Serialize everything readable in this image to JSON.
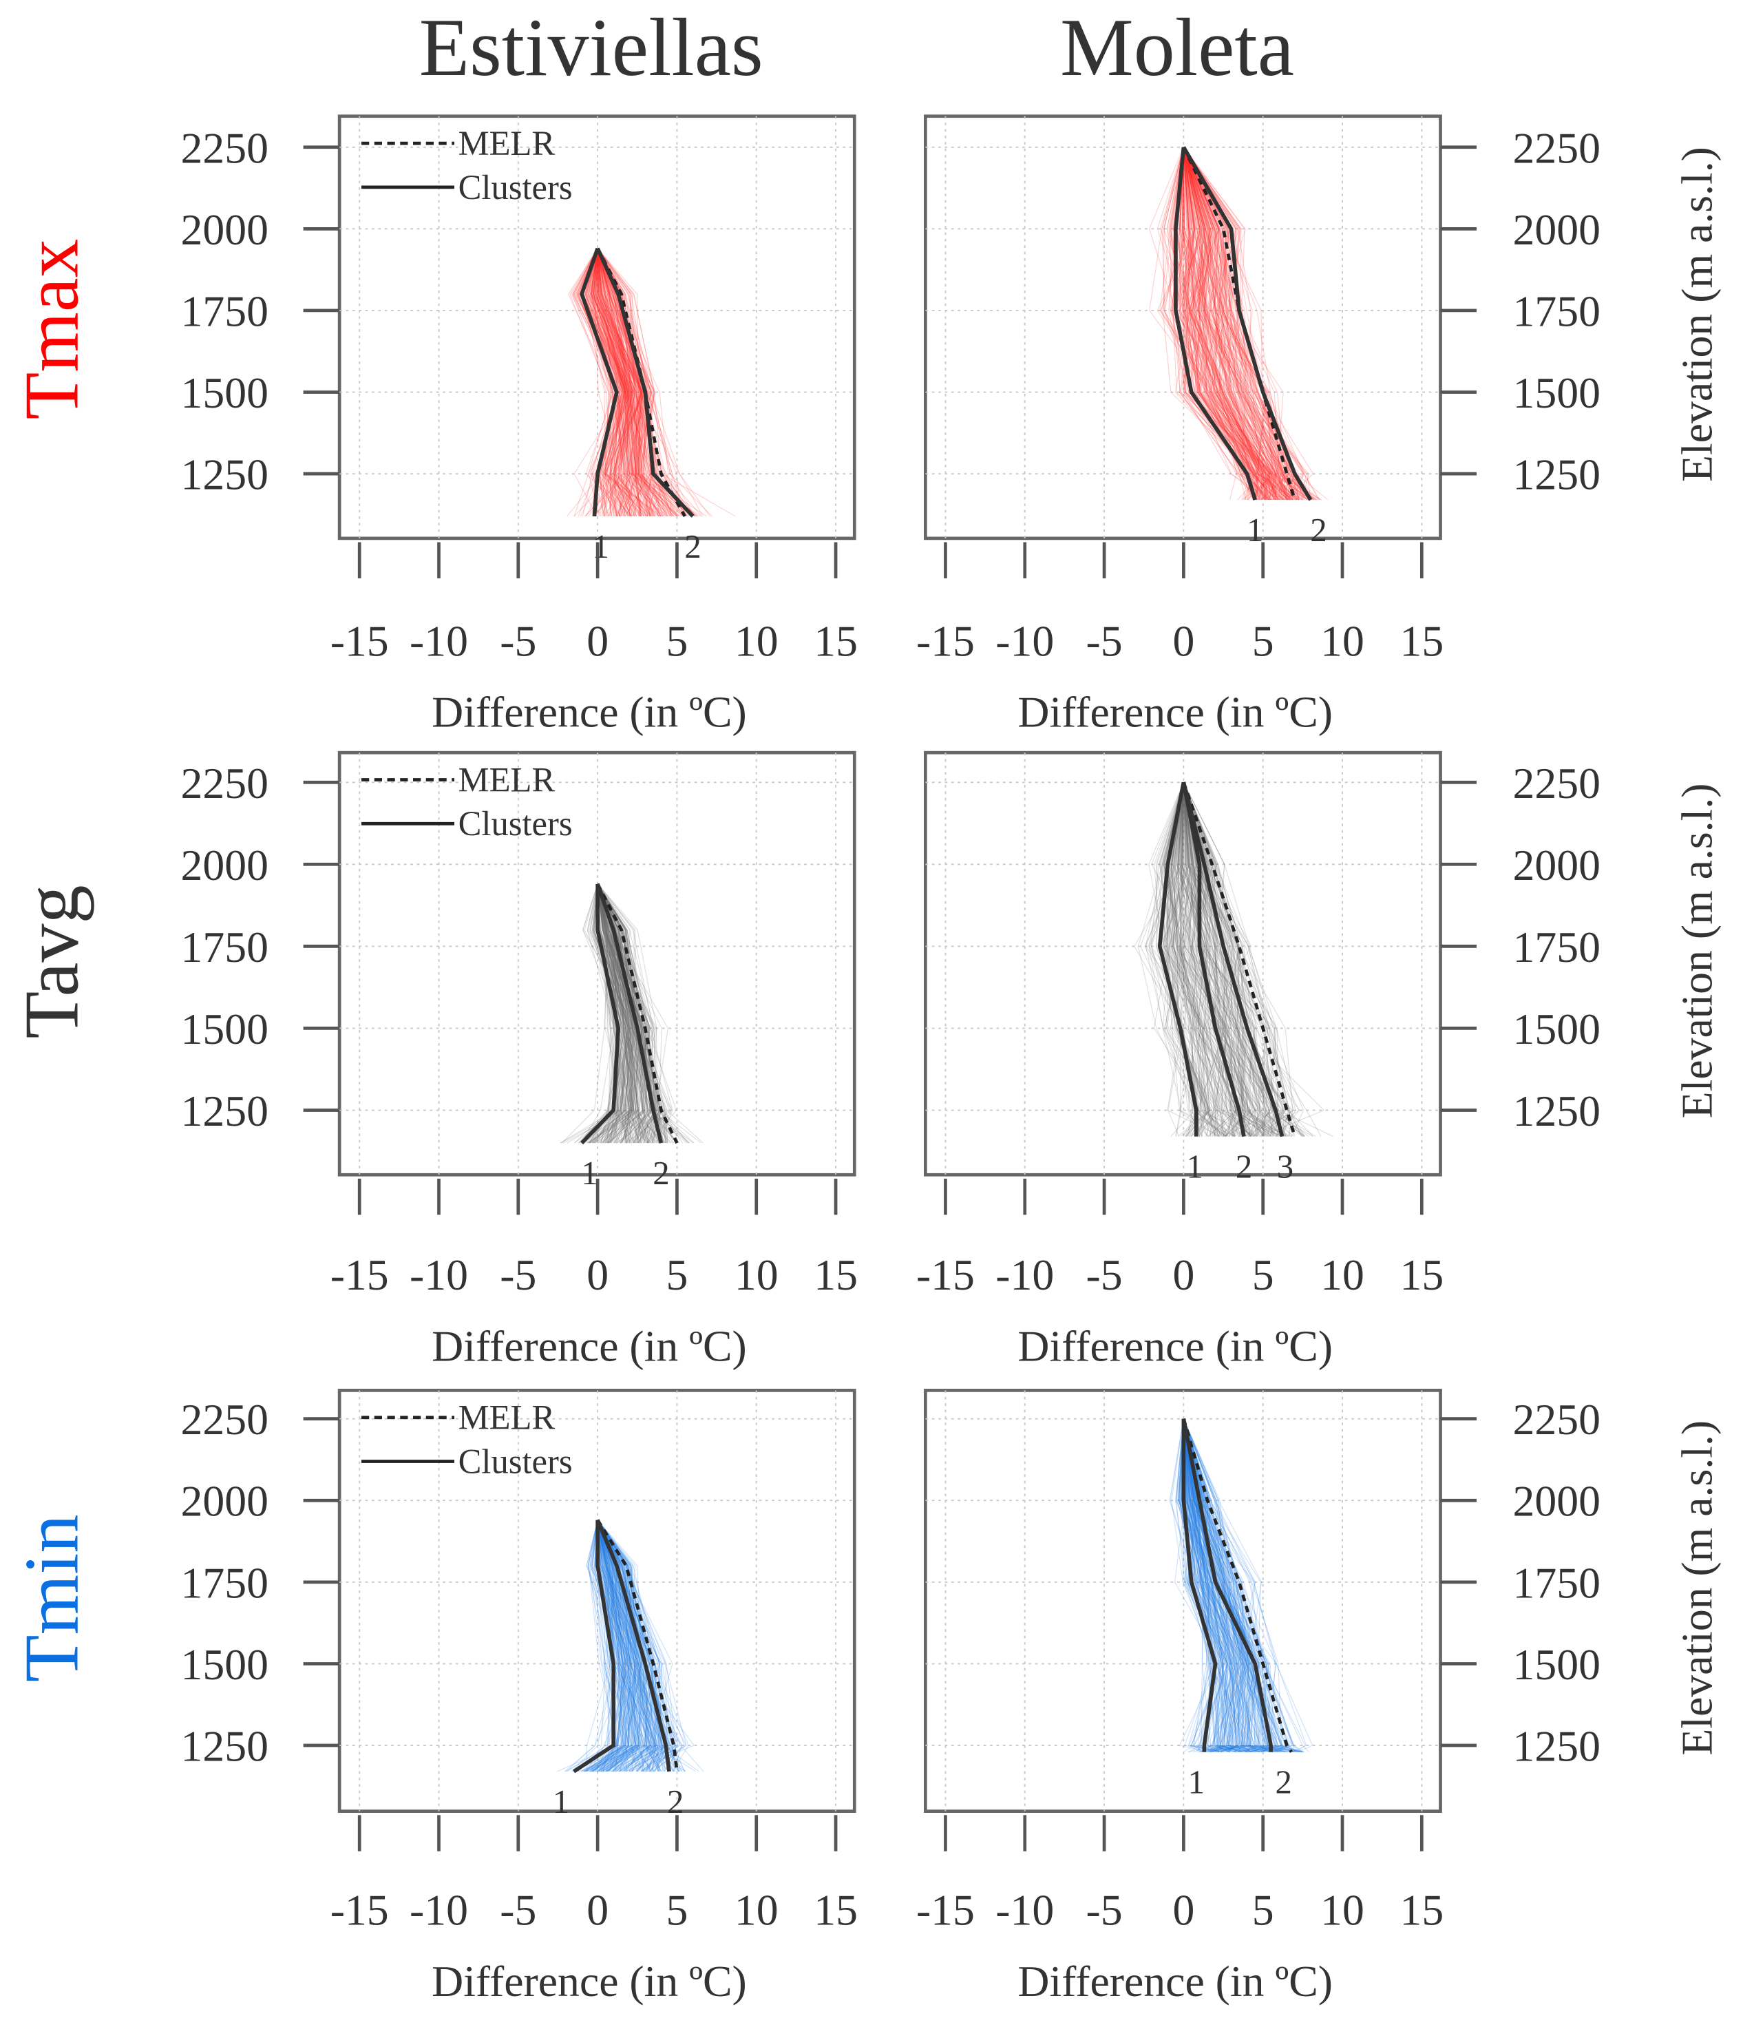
{
  "figure": {
    "columns": [
      "Estiviellas",
      "Moleta"
    ],
    "rows": [
      {
        "label": "Tmax",
        "color": "#ff0000",
        "fan_color": "#ff1010"
      },
      {
        "label": "Tavg",
        "color": "#333333",
        "fan_color": "#555555"
      },
      {
        "label": "Tmin",
        "color": "#0a6fe0",
        "fan_color": "#0a6fe0"
      }
    ],
    "xlabel": "Difference (in ºC)",
    "ylabel": "Elevation (m a.s.l.)",
    "legend": {
      "melr": "MELR",
      "clusters": "Clusters"
    },
    "xticks": [
      -15,
      -10,
      -5,
      0,
      5,
      10,
      15
    ],
    "yticks": [
      1250,
      1500,
      1750,
      2000,
      2250
    ]
  },
  "chart_data": [
    {
      "type": "line",
      "row": "Tmax",
      "site": "Estiviellas",
      "xlim": [
        -16,
        16.5
      ],
      "ylim": [
        1050,
        2350
      ],
      "elevation": [
        1940,
        1800,
        1500,
        1250,
        1120
      ],
      "melr": [
        0,
        1.5,
        3,
        4,
        5.5
      ],
      "series": [
        {
          "name": "1",
          "x": [
            0,
            -1,
            1.2,
            0,
            -0.2
          ],
          "y": [
            1940,
            1800,
            1500,
            1250,
            1120
          ]
        },
        {
          "name": "2",
          "x": [
            0,
            1.3,
            3,
            3.5,
            6
          ],
          "y": [
            1940,
            1800,
            1500,
            1250,
            1120
          ]
        }
      ],
      "cluster_labels": [
        {
          "text": "1",
          "x": 0.2
        },
        {
          "text": "2",
          "x": 6
        }
      ]
    },
    {
      "type": "line",
      "row": "Tmax",
      "site": "Moleta",
      "xlim": [
        -16,
        16.5
      ],
      "ylim": [
        1050,
        2350
      ],
      "elevation": [
        2250,
        2000,
        1750,
        1500,
        1250,
        1170
      ],
      "melr": [
        0,
        2.5,
        3.5,
        5,
        6.5,
        7
      ],
      "series": [
        {
          "name": "1",
          "x": [
            0,
            -0.5,
            -0.5,
            0.5,
            4,
            4.5
          ],
          "y": [
            2250,
            2000,
            1750,
            1500,
            1250,
            1170
          ]
        },
        {
          "name": "2",
          "x": [
            0,
            3,
            3.5,
            5,
            7,
            8
          ],
          "y": [
            2250,
            2000,
            1750,
            1500,
            1250,
            1170
          ]
        }
      ],
      "cluster_labels": [
        {
          "text": "1",
          "x": 4.5
        },
        {
          "text": "2",
          "x": 8.5
        }
      ]
    },
    {
      "type": "line",
      "row": "Tavg",
      "site": "Estiviellas",
      "xlim": [
        -16,
        16.5
      ],
      "ylim": [
        1050,
        2350
      ],
      "elevation": [
        1940,
        1800,
        1500,
        1250,
        1150
      ],
      "melr": [
        0,
        1.5,
        3,
        4,
        5
      ],
      "series": [
        {
          "name": "1",
          "x": [
            0,
            0,
            1.3,
            1,
            -1
          ],
          "y": [
            1940,
            1800,
            1500,
            1250,
            1150
          ]
        },
        {
          "name": "2",
          "x": [
            0,
            1,
            2.5,
            3.5,
            4
          ],
          "y": [
            1940,
            1800,
            1500,
            1250,
            1150
          ]
        }
      ],
      "cluster_labels": [
        {
          "text": "1",
          "x": -0.5
        },
        {
          "text": "2",
          "x": 4
        }
      ]
    },
    {
      "type": "line",
      "row": "Tavg",
      "site": "Moleta",
      "xlim": [
        -16,
        16.5
      ],
      "ylim": [
        1050,
        2350
      ],
      "elevation": [
        2250,
        2000,
        1750,
        1500,
        1250,
        1170
      ],
      "melr": [
        0,
        1.8,
        3.5,
        5,
        6.5,
        7
      ],
      "series": [
        {
          "name": "1",
          "x": [
            0,
            -1,
            -1.5,
            -0.2,
            0.8,
            0.8
          ],
          "y": [
            2250,
            2000,
            1750,
            1500,
            1250,
            1170
          ]
        },
        {
          "name": "2",
          "x": [
            0,
            1,
            1,
            2,
            3.5,
            3.8
          ],
          "y": [
            2250,
            2000,
            1750,
            1500,
            1250,
            1170
          ]
        },
        {
          "name": "3",
          "x": [
            0,
            1.3,
            2.5,
            4,
            5.8,
            6.2
          ],
          "y": [
            2250,
            2000,
            1750,
            1500,
            1250,
            1170
          ]
        }
      ],
      "cluster_labels": [
        {
          "text": "1",
          "x": 0.7
        },
        {
          "text": "2",
          "x": 3.8
        },
        {
          "text": "3",
          "x": 6.4
        }
      ]
    },
    {
      "type": "line",
      "row": "Tmin",
      "site": "Estiviellas",
      "xlim": [
        -16,
        16.5
      ],
      "ylim": [
        1050,
        2350
      ],
      "elevation": [
        1940,
        1800,
        1500,
        1250,
        1170
      ],
      "melr": [
        0,
        1.8,
        3.5,
        4.8,
        5
      ],
      "series": [
        {
          "name": "1",
          "x": [
            0,
            0,
            1,
            1,
            -1.5
          ],
          "y": [
            1940,
            1800,
            1500,
            1250,
            1170
          ]
        },
        {
          "name": "2",
          "x": [
            0,
            1.2,
            3,
            4.3,
            4.5
          ],
          "y": [
            1940,
            1800,
            1500,
            1250,
            1170
          ]
        }
      ],
      "cluster_labels": [
        {
          "text": "1",
          "x": -2.3
        },
        {
          "text": "2",
          "x": 4.9
        }
      ]
    },
    {
      "type": "line",
      "row": "Tmin",
      "site": "Moleta",
      "xlim": [
        -16,
        16.5
      ],
      "ylim": [
        1050,
        2350
      ],
      "elevation": [
        2250,
        2000,
        1750,
        1500,
        1250,
        1230
      ],
      "melr": [
        0,
        1.5,
        3.5,
        5,
        6.5,
        6.8
      ],
      "series": [
        {
          "name": "1",
          "x": [
            0,
            0,
            0.5,
            2,
            1.3,
            1.3
          ],
          "y": [
            2250,
            2000,
            1750,
            1500,
            1250,
            1230
          ]
        },
        {
          "name": "2",
          "x": [
            0,
            1,
            2,
            4.5,
            5.5,
            5.5
          ],
          "y": [
            2250,
            2000,
            1750,
            1500,
            1250,
            1230
          ]
        }
      ],
      "cluster_labels": [
        {
          "text": "1",
          "x": 0.8
        },
        {
          "text": "2",
          "x": 6.3
        }
      ]
    }
  ]
}
